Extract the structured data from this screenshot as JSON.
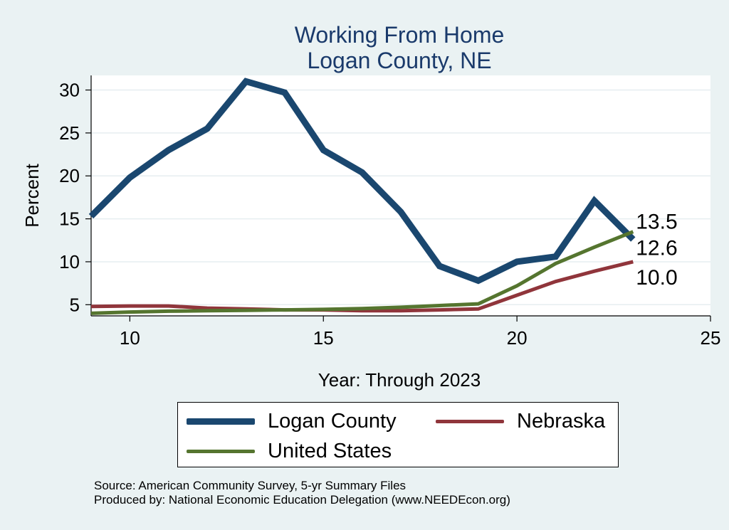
{
  "chart_data": {
    "type": "line",
    "title": [
      "Working From Home",
      "Logan County, NE"
    ],
    "xlabel": "Year: Through 2023",
    "ylabel": "Percent",
    "xlim": [
      9,
      25
    ],
    "ylim": [
      3.7,
      31.7
    ],
    "xticks": [
      10,
      15,
      20,
      25
    ],
    "yticks": [
      5,
      10,
      15,
      20,
      25,
      30
    ],
    "grid": true,
    "series": [
      {
        "name": "Logan County",
        "color": "#1a476f",
        "x": [
          9,
          10,
          11,
          12,
          13,
          14,
          15,
          16,
          17,
          18,
          19,
          20,
          21,
          22,
          23
        ],
        "values": [
          15.3,
          19.8,
          23.0,
          25.5,
          31.0,
          29.7,
          23.0,
          20.4,
          15.8,
          9.5,
          7.8,
          10.0,
          10.6,
          17.1,
          12.6
        ]
      },
      {
        "name": "Nebraska",
        "color": "#90353b",
        "x": [
          9,
          10,
          11,
          12,
          13,
          14,
          15,
          16,
          17,
          18,
          19,
          20,
          21,
          22,
          23
        ],
        "values": [
          4.8,
          4.85,
          4.85,
          4.6,
          4.5,
          4.4,
          4.4,
          4.3,
          4.3,
          4.4,
          4.5,
          6.1,
          7.7,
          8.9,
          10.0
        ]
      },
      {
        "name": "United States",
        "color": "#55752f",
        "x": [
          9,
          10,
          11,
          12,
          13,
          14,
          15,
          16,
          17,
          18,
          19,
          20,
          21,
          22,
          23
        ],
        "values": [
          4.0,
          4.15,
          4.25,
          4.3,
          4.35,
          4.4,
          4.45,
          4.55,
          4.7,
          4.9,
          5.1,
          7.2,
          9.8,
          11.7,
          13.5
        ]
      }
    ],
    "end_labels": [
      {
        "text": "13.5",
        "value": 13.5,
        "color": "#55752f"
      },
      {
        "text": "12.6",
        "value": 12.6,
        "color": "#1a476f"
      },
      {
        "text": "10.0",
        "value": 10.0,
        "color": "#90353b"
      }
    ]
  },
  "legend": {
    "items": [
      {
        "label": "Logan County",
        "color": "#1a476f"
      },
      {
        "label": "Nebraska",
        "color": "#90353b"
      },
      {
        "label": "United States",
        "color": "#55752f"
      }
    ]
  },
  "source": {
    "line1": "Source: American Community Survey, 5-yr Summary Files",
    "line2": "Produced by: National Economic Education Delegation (www.NEEDEcon.org)"
  }
}
